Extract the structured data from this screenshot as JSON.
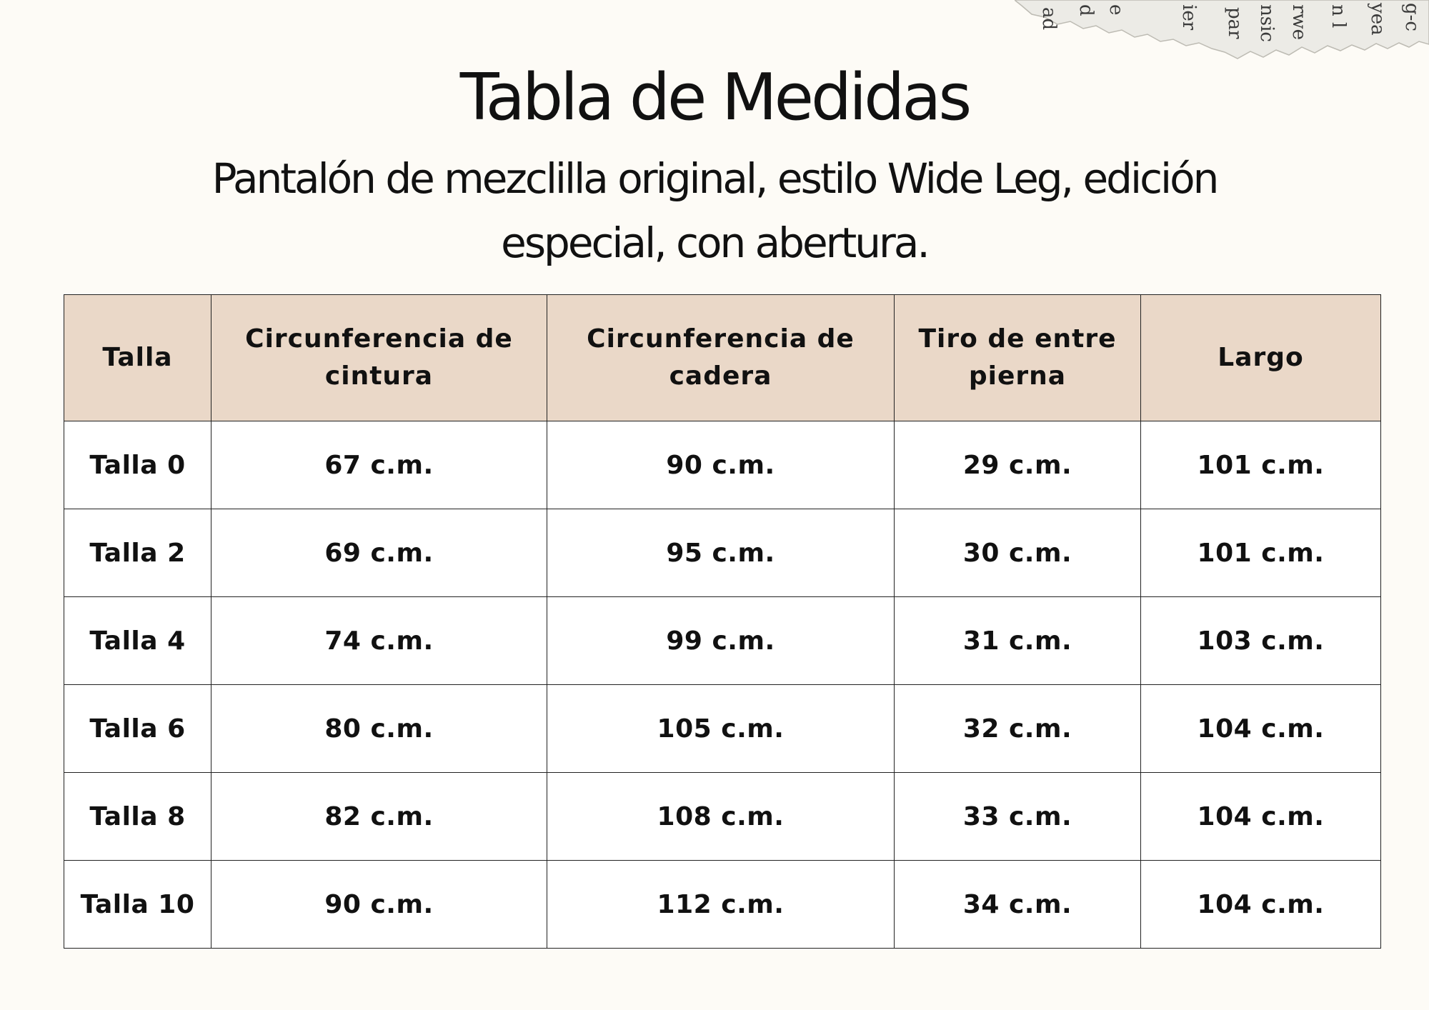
{
  "title": "Tabla de Medidas",
  "subtitle": "Pantalón de mezclilla original, estilo Wide Leg, edición especial, con abertura.",
  "colors": {
    "background": "#fdfbf6",
    "header_fill": "#ead8c8",
    "cell_fill": "#ffffff",
    "border": "#222222",
    "text": "#111111"
  },
  "decoration": {
    "torn_paper_words": [
      "ad",
      "d",
      "e",
      "ier",
      "par",
      "nsic",
      "rwe",
      "n l",
      "yea",
      "g-c"
    ]
  },
  "table": {
    "headers": [
      "Talla",
      "Circunferencia  de cintura",
      "Circunferencia de cadera",
      "Tiro de entre pierna",
      "Largo"
    ],
    "rows": [
      [
        "Talla 0",
        "67 c.m.",
        "90 c.m.",
        "29 c.m.",
        "101 c.m."
      ],
      [
        "Talla 2",
        "69 c.m.",
        "95 c.m.",
        "30 c.m.",
        "101 c.m."
      ],
      [
        "Talla 4",
        "74 c.m.",
        "99 c.m.",
        "31 c.m.",
        "103 c.m."
      ],
      [
        "Talla 6",
        "80 c.m.",
        "105 c.m.",
        "32 c.m.",
        "104 c.m."
      ],
      [
        "Talla 8",
        "82 c.m.",
        "108 c.m.",
        "33 c.m.",
        "104 c.m."
      ],
      [
        "Talla 10",
        "90 c.m.",
        "112 c.m.",
        "34 c.m.",
        "104 c.m."
      ]
    ]
  }
}
